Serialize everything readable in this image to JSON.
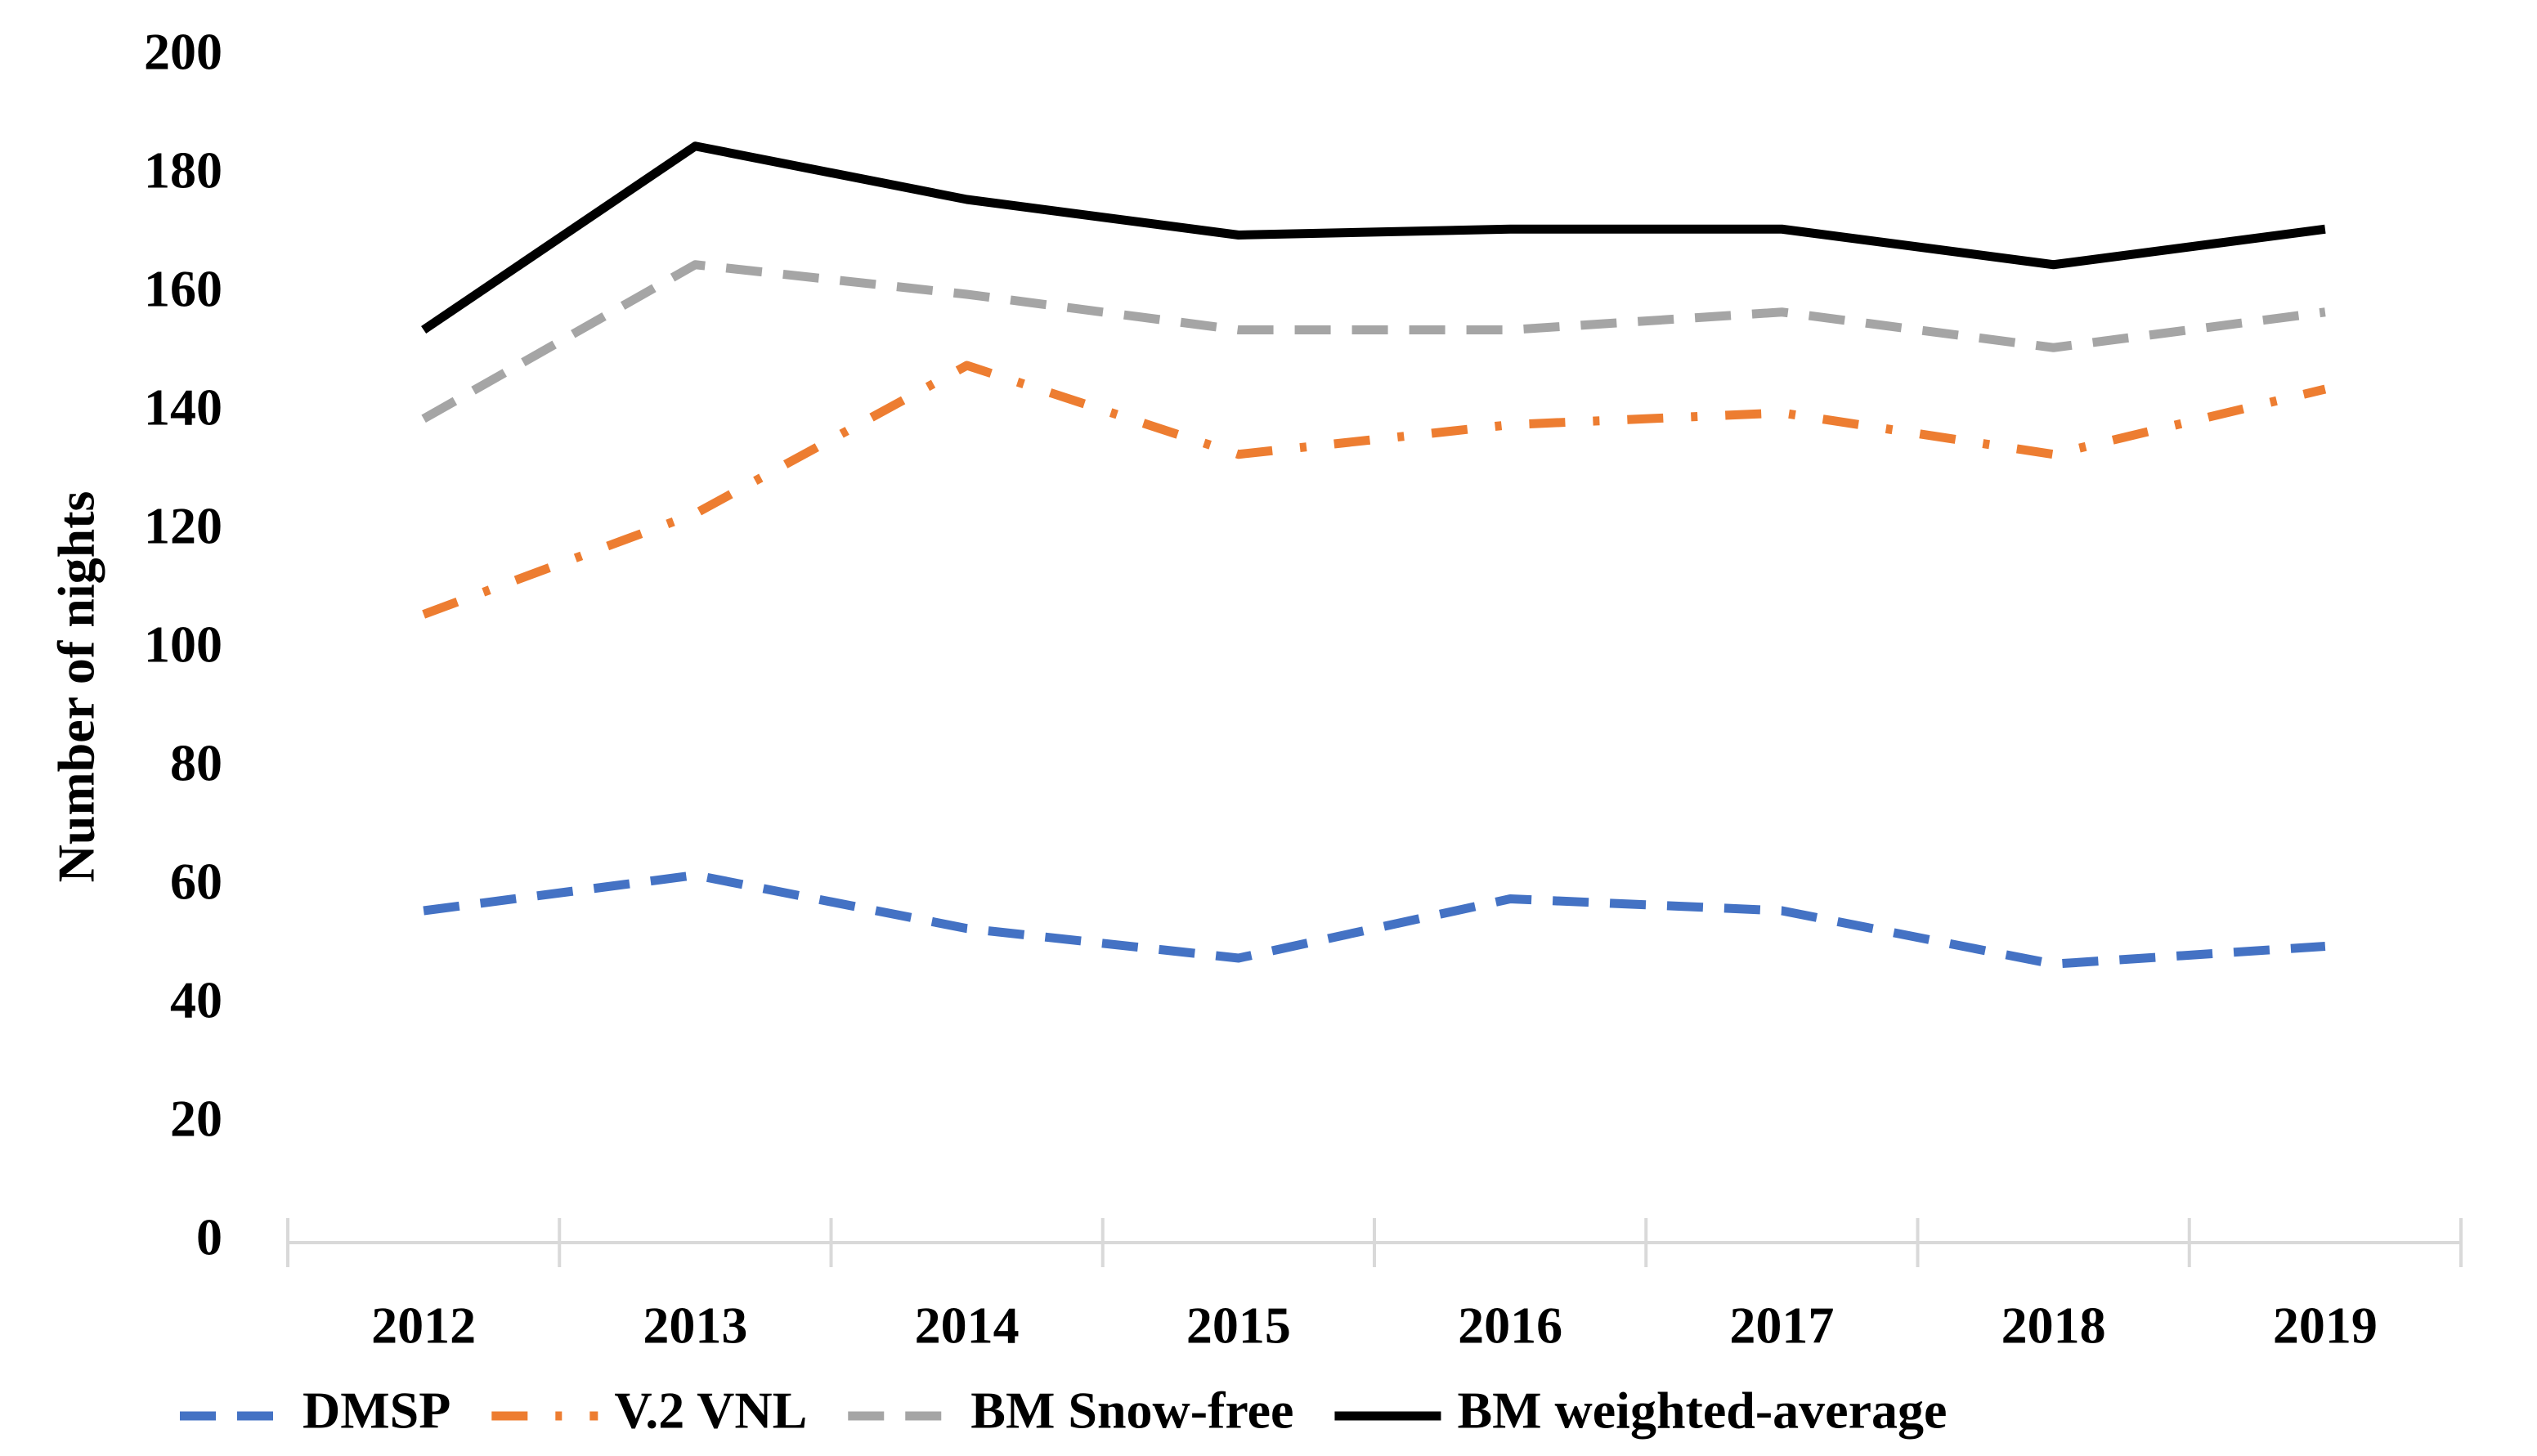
{
  "chart_data": {
    "type": "line",
    "ylabel": "Number of nights",
    "categories": [
      "2012",
      "2013",
      "2014",
      "2015",
      "2016",
      "2017",
      "2018",
      "2019"
    ],
    "series": [
      {
        "name": "DMSP",
        "color": "#4472c4",
        "dash": "dash",
        "values": [
          56,
          62,
          53,
          48,
          58,
          56,
          47,
          50
        ]
      },
      {
        "name": "V.2 VNL",
        "color": "#ed7d31",
        "dash": "dashdot",
        "values": [
          106,
          123,
          148,
          133,
          138,
          140,
          133,
          144
        ]
      },
      {
        "name": "BM Snow-free",
        "color": "#a5a5a5",
        "dash": "dash",
        "values": [
          139,
          165,
          160,
          154,
          154,
          157,
          151,
          157
        ]
      },
      {
        "name": "BM weighted-average",
        "color": "#000000",
        "dash": "solid",
        "values": [
          154,
          185,
          176,
          170,
          171,
          171,
          165,
          171
        ]
      }
    ],
    "ylim": [
      0,
      200
    ],
    "yticks": [
      0,
      20,
      40,
      60,
      80,
      100,
      120,
      140,
      160,
      180,
      200
    ],
    "grid": false,
    "legend": "bottom"
  }
}
